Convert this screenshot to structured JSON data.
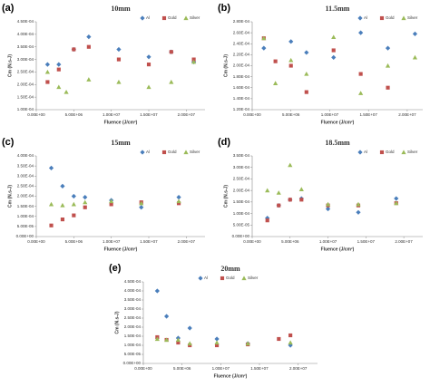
{
  "chart_data": [
    {
      "panel": "(a)",
      "type": "scatter",
      "title": "10mm",
      "xlabel": "Fluence (J/cm²)",
      "ylabel": "Cm (N.s-J)",
      "legend": "upper right",
      "xlim": [
        0,
        22500000.0
      ],
      "xticks": [
        {
          "value": 0,
          "label": "0.00E+00"
        },
        {
          "value": 5000000.0,
          "label": "5.00E+06"
        },
        {
          "value": 10000000.0,
          "label": "1.00E+07"
        },
        {
          "value": 15000000.0,
          "label": "1.50E+07"
        },
        {
          "value": 20000000.0,
          "label": "2.00E+07"
        }
      ],
      "ylim": [
        0.0001,
        0.00045
      ],
      "yticks": [
        {
          "value": 0.0001,
          "label": "1.00E-04"
        },
        {
          "value": 0.00015,
          "label": "1.50E-04"
        },
        {
          "value": 0.0002,
          "label": "2.00E-04"
        },
        {
          "value": 0.00025,
          "label": "2.50E-04"
        },
        {
          "value": 0.0003,
          "label": "3.00E-04"
        },
        {
          "value": 0.00035,
          "label": "3.50E-04"
        },
        {
          "value": 0.0004,
          "label": "4.00E-04"
        },
        {
          "value": 0.00045,
          "label": "4.50E-04"
        }
      ],
      "series": [
        {
          "name": "Al",
          "color": "#4a7ebb",
          "marker": "diamond",
          "x": [
            1500000.0,
            3000000.0,
            5000000.0,
            7000000.0,
            11000000.0,
            15000000.0,
            18000000.0,
            21000000.0
          ],
          "values": [
            0.00028,
            0.00028,
            0.00034,
            0.00039,
            0.00034,
            0.00031,
            0.00033,
            0.00029
          ]
        },
        {
          "name": "Gold",
          "color": "#c0504d",
          "marker": "square",
          "x": [
            1500000.0,
            3000000.0,
            5000000.0,
            7000000.0,
            11000000.0,
            15000000.0,
            18000000.0,
            21000000.0
          ],
          "values": [
            0.00021,
            0.00026,
            0.00034,
            0.00035,
            0.0003,
            0.00028,
            0.00033,
            0.0003
          ]
        },
        {
          "name": "Silver",
          "color": "#9bbb59",
          "marker": "triangle",
          "x": [
            1500000.0,
            3000000.0,
            4000000.0,
            7000000.0,
            11000000.0,
            15000000.0,
            18000000.0,
            21000000.0
          ],
          "values": [
            0.00025,
            0.00019,
            0.00017,
            0.00022,
            0.00021,
            0.00019,
            0.00021,
            0.00029
          ]
        }
      ]
    },
    {
      "panel": "(b)",
      "type": "scatter",
      "title": "11.5mm",
      "xlabel": "Fluence (J/cm²)",
      "ylabel": "Cm (N.s-J)",
      "legend": "upper right",
      "xlim": [
        0,
        22000000.0
      ],
      "xticks": [
        {
          "value": 0,
          "label": "0.00E+00"
        },
        {
          "value": 5000000.0,
          "label": "5.00E+06"
        },
        {
          "value": 10000000.0,
          "label": "1.00E+07"
        },
        {
          "value": 15000000.0,
          "label": "1.50E+07"
        },
        {
          "value": 20000000.0,
          "label": "2.00E+07"
        }
      ],
      "ylim": [
        0.00012,
        0.00028
      ],
      "yticks": [
        {
          "value": 0.00012,
          "label": "1.20E-04"
        },
        {
          "value": 0.00014,
          "label": "1.40E-04"
        },
        {
          "value": 0.00016,
          "label": "1.60E-04"
        },
        {
          "value": 0.00018,
          "label": "1.80E-04"
        },
        {
          "value": 0.0002,
          "label": "2.00E-04"
        },
        {
          "value": 0.00022,
          "label": "2.20E-04"
        },
        {
          "value": 0.00024,
          "label": "2.40E-04"
        },
        {
          "value": 0.00026,
          "label": "2.60E-04"
        },
        {
          "value": 0.00028,
          "label": "2.80E-04"
        }
      ],
      "series": [
        {
          "name": "Al",
          "color": "#4a7ebb",
          "marker": "diamond",
          "x": [
            1500000.0,
            5000000.0,
            7000000.0,
            10500000.0,
            14000000.0,
            17500000.0,
            21000000.0
          ],
          "values": [
            0.000232,
            0.000244,
            0.000224,
            0.000215,
            0.00026,
            0.000232,
            0.000258
          ]
        },
        {
          "name": "Gold",
          "color": "#c0504d",
          "marker": "square",
          "x": [
            1500000.0,
            3000000.0,
            5000000.0,
            7000000.0,
            10500000.0,
            14000000.0,
            17500000.0
          ],
          "values": [
            0.00025,
            0.000208,
            0.0002,
            0.000152,
            0.000228,
            0.000185,
            0.00016
          ]
        },
        {
          "name": "Silver",
          "color": "#9bbb59",
          "marker": "triangle",
          "x": [
            1500000.0,
            3000000.0,
            5000000.0,
            7000000.0,
            10500000.0,
            14000000.0,
            17500000.0,
            21000000.0
          ],
          "values": [
            0.00025,
            0.000168,
            0.00021,
            0.000185,
            0.000252,
            0.00015,
            0.0002,
            0.000215
          ]
        }
      ]
    },
    {
      "panel": "(c)",
      "type": "scatter",
      "title": "15mm",
      "xlabel": "Fluence (J/cm²)",
      "ylabel": "Cm (N.s-J)",
      "legend": "upper right",
      "xlim": [
        0,
        22500000.0
      ],
      "xticks": [
        {
          "value": 0,
          "label": "0.00E+00"
        },
        {
          "value": 5000000.0,
          "label": "5.00E+06"
        },
        {
          "value": 10000000.0,
          "label": "1.00E+07"
        },
        {
          "value": 15000000.0,
          "label": "1.50E+07"
        },
        {
          "value": 20000000.0,
          "label": "2.00E+07"
        }
      ],
      "ylim": [
        0,
        0.0004
      ],
      "yticks": [
        {
          "value": 0,
          "label": "0.00E+00"
        },
        {
          "value": 5e-05,
          "label": "5.00E-05"
        },
        {
          "value": 0.0001,
          "label": "1.00E-04"
        },
        {
          "value": 0.00015,
          "label": "1.50E-04"
        },
        {
          "value": 0.0002,
          "label": "2.00E-04"
        },
        {
          "value": 0.00025,
          "label": "2.50E-04"
        },
        {
          "value": 0.0003,
          "label": "3.00E-04"
        },
        {
          "value": 0.00035,
          "label": "3.50E-04"
        },
        {
          "value": 0.0004,
          "label": "4.00E-04"
        }
      ],
      "series": [
        {
          "name": "Al",
          "color": "#4a7ebb",
          "marker": "diamond",
          "x": [
            2000000.0,
            3500000.0,
            5000000.0,
            6500000.0,
            10000000.0,
            14000000.0,
            19000000.0
          ],
          "values": [
            0.00034,
            0.00025,
            0.0002,
            0.000195,
            0.00018,
            0.000145,
            0.000195
          ]
        },
        {
          "name": "Gold",
          "color": "#c0504d",
          "marker": "square",
          "x": [
            2000000.0,
            3500000.0,
            5000000.0,
            6500000.0,
            10000000.0,
            14000000.0,
            19000000.0
          ],
          "values": [
            5.5e-05,
            8.5e-05,
            0.000105,
            0.000145,
            0.00016,
            0.00017,
            0.000165
          ]
        },
        {
          "name": "Silver",
          "color": "#9bbb59",
          "marker": "triangle",
          "x": [
            2000000.0,
            3500000.0,
            5000000.0,
            6500000.0,
            10000000.0,
            14000000.0,
            19000000.0
          ],
          "values": [
            0.00016,
            0.000155,
            0.00016,
            0.00017,
            0.000175,
            0.000165,
            0.000175
          ]
        }
      ]
    },
    {
      "panel": "(d)",
      "type": "scatter",
      "title": "18.5mm",
      "xlabel": "Fluence (J/cm²)",
      "ylabel": "Cm (N.s-J)",
      "legend": "upper right",
      "xlim": [
        0,
        22500000.0
      ],
      "xticks": [
        {
          "value": 0,
          "label": "0.00E+00"
        },
        {
          "value": 5000000.0,
          "label": "5.00E+06"
        },
        {
          "value": 10000000.0,
          "label": "1.00E+07"
        },
        {
          "value": 15000000.0,
          "label": "1.50E+07"
        },
        {
          "value": 20000000.0,
          "label": "2.00E+07"
        }
      ],
      "ylim": [
        0,
        0.00035
      ],
      "yticks": [
        {
          "value": 0,
          "label": "0.00E+00"
        },
        {
          "value": 5e-05,
          "label": "5.00E-05"
        },
        {
          "value": 0.0001,
          "label": "1.00E-04"
        },
        {
          "value": 0.00015,
          "label": "1.50E-04"
        },
        {
          "value": 0.0002,
          "label": "2.00E-04"
        },
        {
          "value": 0.00025,
          "label": "2.50E-04"
        },
        {
          "value": 0.0003,
          "label": "3.00E-04"
        },
        {
          "value": 0.00035,
          "label": "3.50E-04"
        }
      ],
      "series": [
        {
          "name": "Al",
          "color": "#4a7ebb",
          "marker": "diamond",
          "x": [
            2000000.0,
            3500000.0,
            5000000.0,
            6500000.0,
            10000000.0,
            14000000.0,
            19000000.0
          ],
          "values": [
            8e-05,
            0.000135,
            0.00016,
            0.000165,
            0.00012,
            0.000105,
            0.000165
          ]
        },
        {
          "name": "Gold",
          "color": "#c0504d",
          "marker": "square",
          "x": [
            2000000.0,
            3500000.0,
            5000000.0,
            6500000.0,
            10000000.0,
            14000000.0,
            19000000.0
          ],
          "values": [
            7e-05,
            0.000135,
            0.00016,
            0.00016,
            0.000135,
            0.000135,
            0.000145
          ]
        },
        {
          "name": "Silver",
          "color": "#9bbb59",
          "marker": "triangle",
          "x": [
            2000000.0,
            3500000.0,
            5000000.0,
            6500000.0,
            10000000.0,
            14000000.0,
            19000000.0
          ],
          "values": [
            0.0002,
            0.00019,
            0.00031,
            0.000205,
            0.00014,
            0.00014,
            0.000145
          ]
        }
      ]
    },
    {
      "panel": "(e)",
      "type": "scatter",
      "title": "20mm",
      "xlabel": "Fluence (J/cm²)",
      "ylabel": "Cm (N.s-J)",
      "legend": "upper center",
      "xlim": [
        0,
        22500000.0
      ],
      "xticks": [
        {
          "value": 0,
          "label": "0.00E+00"
        },
        {
          "value": 5000000.0,
          "label": "5.00E+06"
        },
        {
          "value": 10000000.0,
          "label": "1.00E+07"
        },
        {
          "value": 15000000.0,
          "label": "1.50E+07"
        },
        {
          "value": 20000000.0,
          "label": "2.00E+07"
        }
      ],
      "ylim": [
        0,
        0.00045
      ],
      "yticks": [
        {
          "value": 0,
          "label": "0.00E+00"
        },
        {
          "value": 5e-05,
          "label": "5.00E-05"
        },
        {
          "value": 0.0001,
          "label": "1.00E-04"
        },
        {
          "value": 0.00015,
          "label": "1.50E-04"
        },
        {
          "value": 0.0002,
          "label": "2.00E-04"
        },
        {
          "value": 0.00025,
          "label": "2.50E-04"
        },
        {
          "value": 0.0003,
          "label": "3.00E-04"
        },
        {
          "value": 0.00035,
          "label": "3.50E-04"
        },
        {
          "value": 0.0004,
          "label": "4.00E-04"
        },
        {
          "value": 0.00045,
          "label": "4.50E-04"
        }
      ],
      "series": [
        {
          "name": "Al",
          "color": "#4a7ebb",
          "marker": "diamond",
          "x": [
            1800000.0,
            3000000.0,
            4500000.0,
            6000000.0,
            9500000.0,
            13500000.0,
            19000000.0
          ],
          "values": [
            0.0004,
            0.00026,
            0.00014,
            0.000195,
            0.000135,
            0.00011,
            0.0001
          ]
        },
        {
          "name": "Gold",
          "color": "#c0504d",
          "marker": "square",
          "x": [
            1800000.0,
            3000000.0,
            4500000.0,
            6000000.0,
            9500000.0,
            13500000.0,
            17500000.0,
            19000000.0
          ],
          "values": [
            0.000145,
            0.00013,
            0.000115,
            0.0001,
            0.0001,
            0.000105,
            0.000135,
            0.000155
          ]
        },
        {
          "name": "Silver",
          "color": "#9bbb59",
          "marker": "triangle",
          "x": [
            1800000.0,
            3000000.0,
            4500000.0,
            6000000.0,
            9500000.0,
            13500000.0,
            19000000.0
          ],
          "values": [
            0.000135,
            0.00013,
            0.00013,
            0.00011,
            0.000115,
            0.00011,
            0.000115
          ]
        }
      ]
    }
  ]
}
